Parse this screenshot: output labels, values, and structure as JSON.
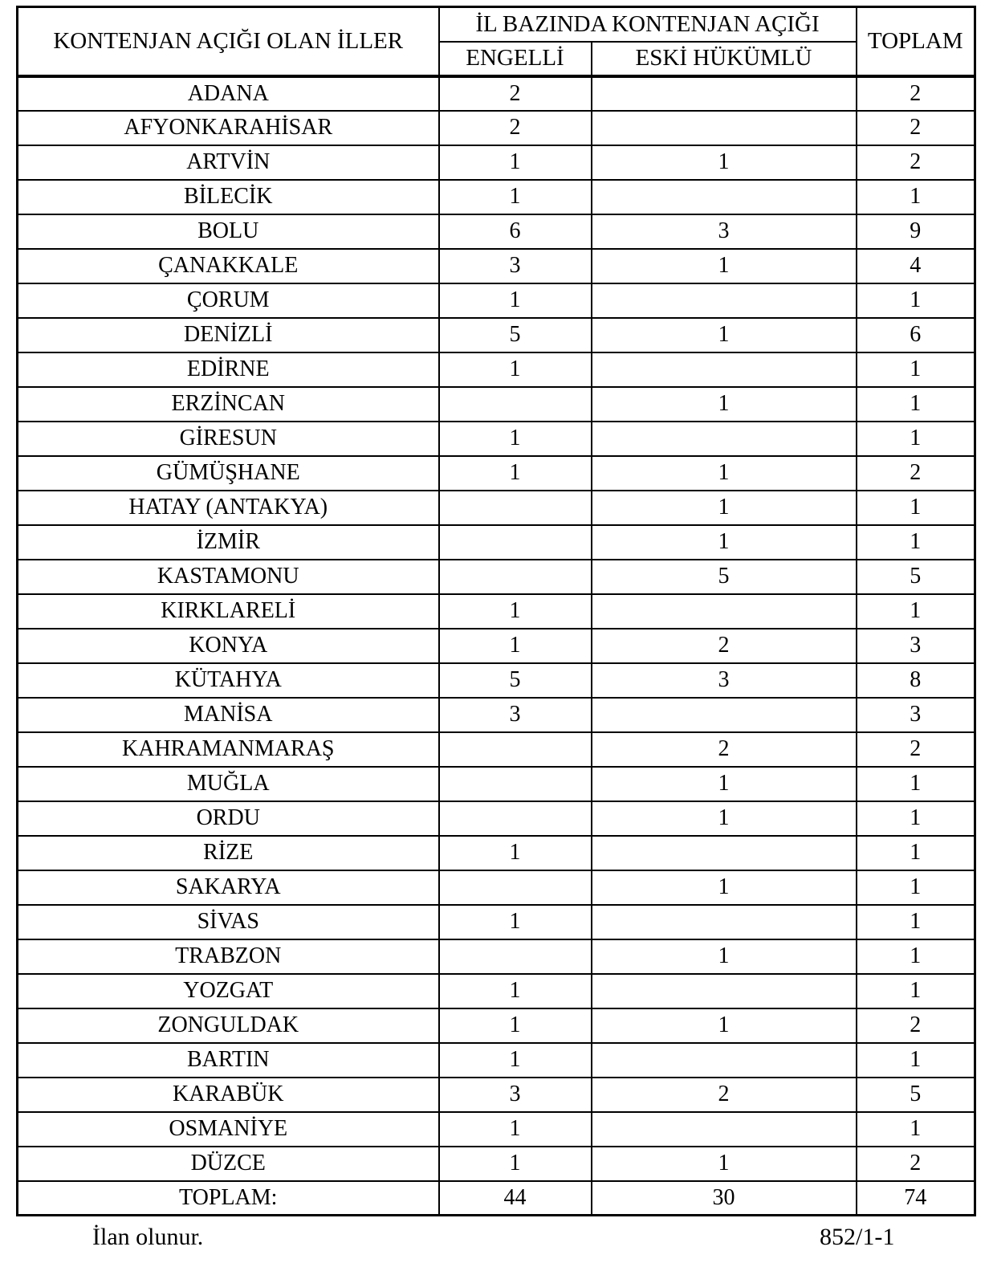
{
  "table": {
    "header": {
      "provinces_col": "KONTENJAN AÇIĞI OLAN İLLER",
      "group_col": "İL BAZINDA KONTENJAN AÇIĞI",
      "engelli_col": "ENGELLİ",
      "eski_hukumlu_col": "ESKİ HÜKÜMLÜ",
      "toplam_col": "TOPLAM"
    },
    "rows": [
      {
        "il": "ADANA",
        "engelli": "2",
        "eski_hukumlu": "",
        "toplam": "2"
      },
      {
        "il": "AFYONKARAHİSAR",
        "engelli": "2",
        "eski_hukumlu": "",
        "toplam": "2"
      },
      {
        "il": "ARTVİN",
        "engelli": "1",
        "eski_hukumlu": "1",
        "toplam": "2"
      },
      {
        "il": "BİLECİK",
        "engelli": "1",
        "eski_hukumlu": "",
        "toplam": "1"
      },
      {
        "il": "BOLU",
        "engelli": "6",
        "eski_hukumlu": "3",
        "toplam": "9"
      },
      {
        "il": "ÇANAKKALE",
        "engelli": "3",
        "eski_hukumlu": "1",
        "toplam": "4"
      },
      {
        "il": "ÇORUM",
        "engelli": "1",
        "eski_hukumlu": "",
        "toplam": "1"
      },
      {
        "il": "DENİZLİ",
        "engelli": "5",
        "eski_hukumlu": "1",
        "toplam": "6"
      },
      {
        "il": "EDİRNE",
        "engelli": "1",
        "eski_hukumlu": "",
        "toplam": "1"
      },
      {
        "il": "ERZİNCAN",
        "engelli": "",
        "eski_hukumlu": "1",
        "toplam": "1"
      },
      {
        "il": "GİRESUN",
        "engelli": "1",
        "eski_hukumlu": "",
        "toplam": "1"
      },
      {
        "il": "GÜMÜŞHANE",
        "engelli": "1",
        "eski_hukumlu": "1",
        "toplam": "2"
      },
      {
        "il": "HATAY (ANTAKYA)",
        "engelli": "",
        "eski_hukumlu": "1",
        "toplam": "1"
      },
      {
        "il": "İZMİR",
        "engelli": "",
        "eski_hukumlu": "1",
        "toplam": "1"
      },
      {
        "il": "KASTAMONU",
        "engelli": "",
        "eski_hukumlu": "5",
        "toplam": "5"
      },
      {
        "il": "KIRKLARELİ",
        "engelli": "1",
        "eski_hukumlu": "",
        "toplam": "1"
      },
      {
        "il": "KONYA",
        "engelli": "1",
        "eski_hukumlu": "2",
        "toplam": "3"
      },
      {
        "il": "KÜTAHYA",
        "engelli": "5",
        "eski_hukumlu": "3",
        "toplam": "8"
      },
      {
        "il": "MANİSA",
        "engelli": "3",
        "eski_hukumlu": "",
        "toplam": "3"
      },
      {
        "il": "KAHRAMANMARAŞ",
        "engelli": "",
        "eski_hukumlu": "2",
        "toplam": "2"
      },
      {
        "il": "MUĞLA",
        "engelli": "",
        "eski_hukumlu": "1",
        "toplam": "1"
      },
      {
        "il": "ORDU",
        "engelli": "",
        "eski_hukumlu": "1",
        "toplam": "1"
      },
      {
        "il": "RİZE",
        "engelli": "1",
        "eski_hukumlu": "",
        "toplam": "1"
      },
      {
        "il": "SAKARYA",
        "engelli": "",
        "eski_hukumlu": "1",
        "toplam": "1"
      },
      {
        "il": "SİVAS",
        "engelli": "1",
        "eski_hukumlu": "",
        "toplam": "1"
      },
      {
        "il": "TRABZON",
        "engelli": "",
        "eski_hukumlu": "1",
        "toplam": "1"
      },
      {
        "il": "YOZGAT",
        "engelli": "1",
        "eski_hukumlu": "",
        "toplam": "1"
      },
      {
        "il": "ZONGULDAK",
        "engelli": "1",
        "eski_hukumlu": "1",
        "toplam": "2"
      },
      {
        "il": "BARTIN",
        "engelli": "1",
        "eski_hukumlu": "",
        "toplam": "1"
      },
      {
        "il": "KARABÜK",
        "engelli": "3",
        "eski_hukumlu": "2",
        "toplam": "5"
      },
      {
        "il": "OSMANİYE",
        "engelli": "1",
        "eski_hukumlu": "",
        "toplam": "1"
      },
      {
        "il": "DÜZCE",
        "engelli": "1",
        "eski_hukumlu": "1",
        "toplam": "2"
      }
    ],
    "total_row": {
      "il": "TOPLAM:",
      "engelli": "44",
      "eski_hukumlu": "30",
      "toplam": "74"
    }
  },
  "footer": {
    "left_text": "İlan olunur.",
    "right_text": "852/1-1"
  },
  "colors": {
    "text": "#000000",
    "border": "#000000",
    "background": "#ffffff"
  }
}
